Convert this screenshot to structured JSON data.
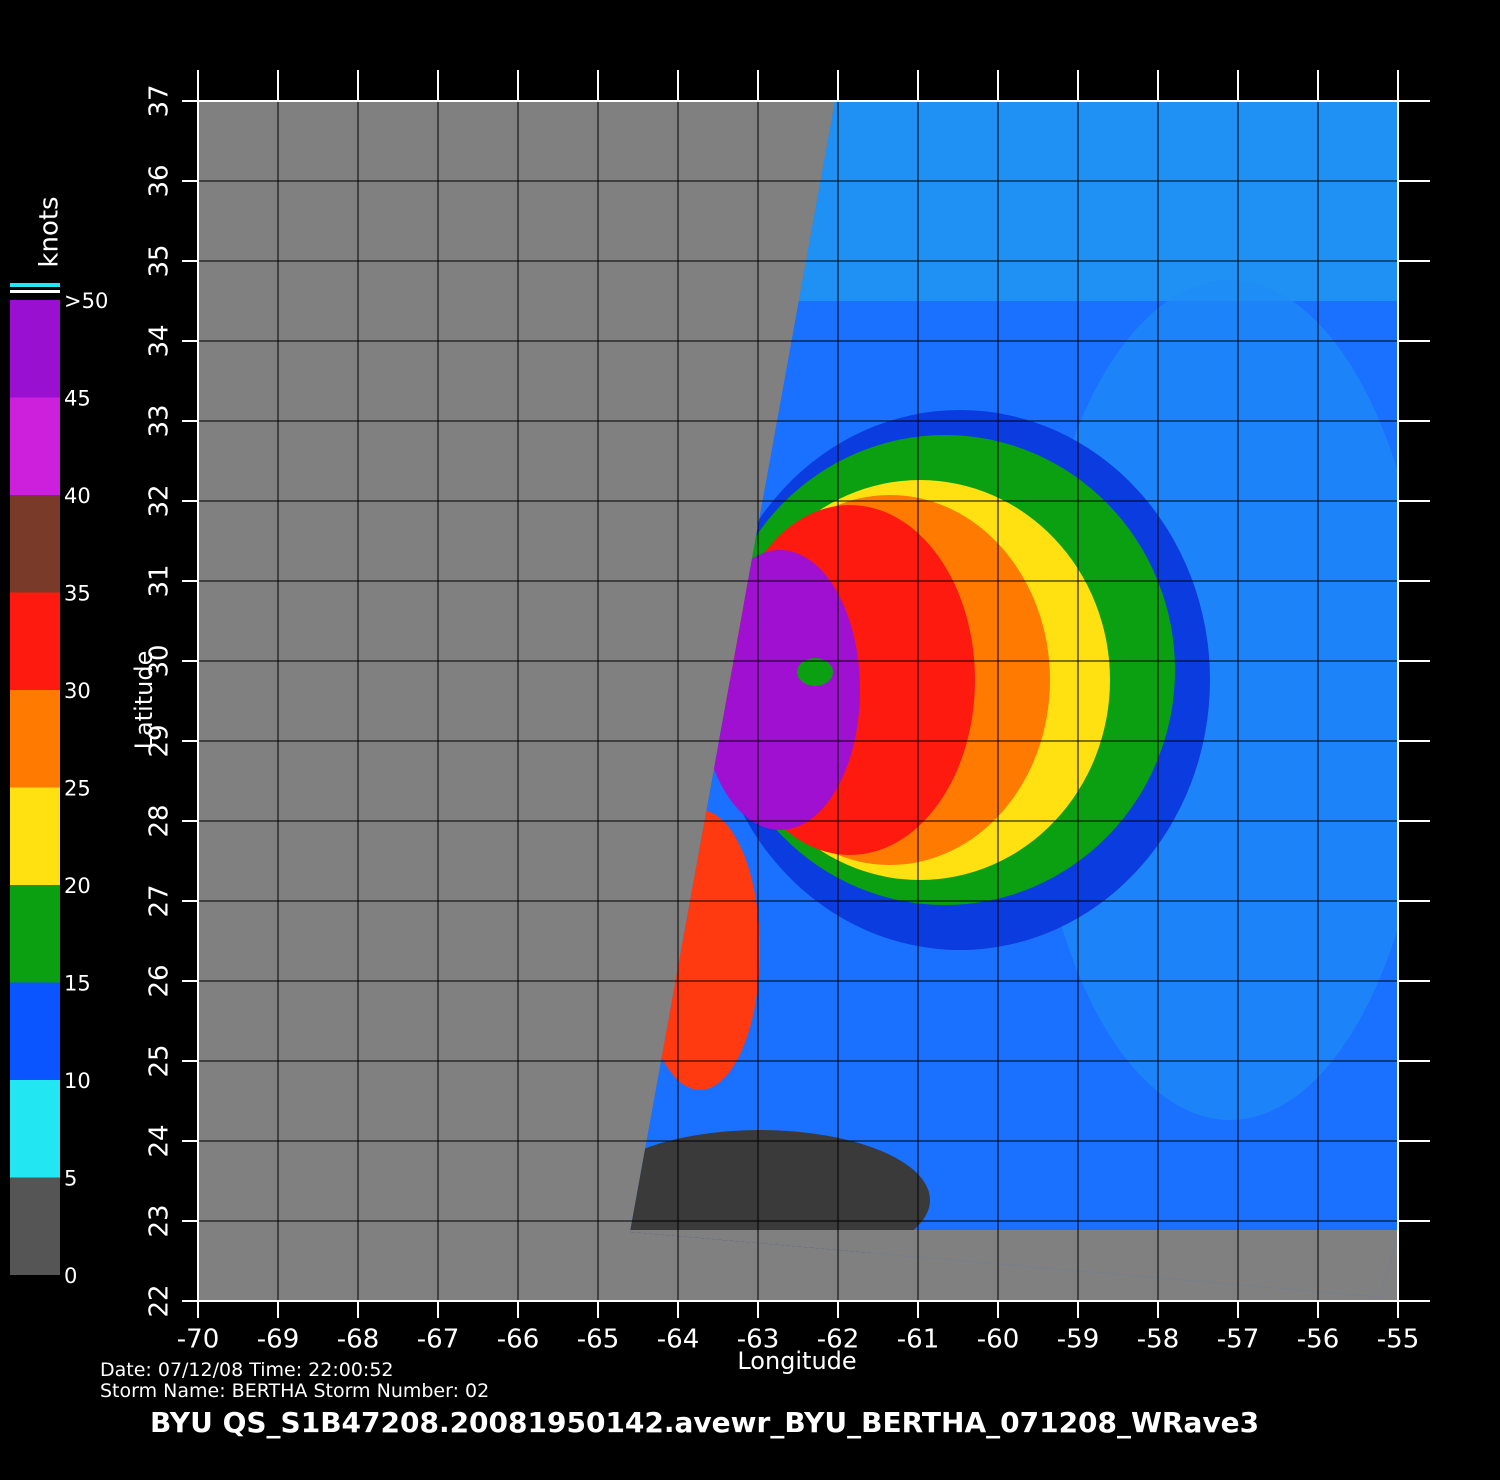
{
  "map": {
    "x_label": "Longitude",
    "y_label": "Latitude",
    "xlim": [
      -70,
      -55
    ],
    "ylim": [
      22,
      37
    ],
    "xticks": [
      -70,
      -69,
      -68,
      -67,
      -66,
      -65,
      -64,
      -63,
      -62,
      -61,
      -60,
      -59,
      -58,
      -57,
      -56,
      -55
    ],
    "yticks": [
      22,
      23,
      24,
      25,
      26,
      27,
      28,
      29,
      30,
      31,
      32,
      33,
      34,
      35,
      36,
      37
    ]
  },
  "colorbar": {
    "title": "knots",
    "lim": [
      0,
      50
    ],
    "ticks": [
      0,
      5,
      10,
      15,
      20,
      25,
      30,
      35,
      40,
      45,
      {
        "value": 50,
        "label": ">50"
      }
    ],
    "colors": [
      "#555555",
      "#22e6f2",
      "#0a55ff",
      "#0aa012",
      "#ffe010",
      "#ff7a00",
      "#ff1a10",
      "#7a3a2a",
      "#cc20dd",
      "#9a10d0"
    ]
  },
  "footer": {
    "line1": "Date:  07/12/08   Time:  22:00:52",
    "line2": "Storm  Name:  BERTHA    Storm  Number:  02",
    "file": "BYU  QS_S1B47208.20081950142.avewr_BYU_BERTHA_071208_WRave3"
  }
}
